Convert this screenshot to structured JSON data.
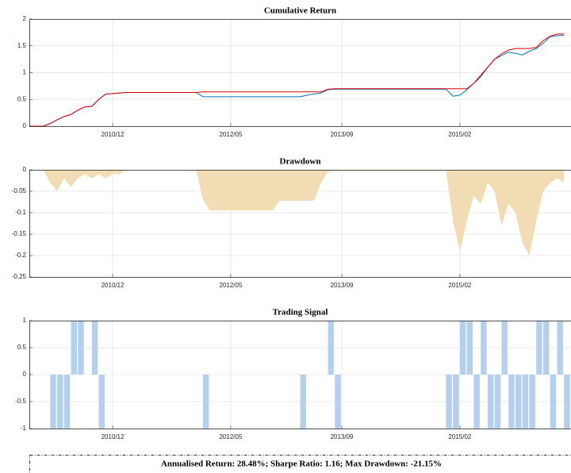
{
  "chart_data": [
    {
      "type": "line",
      "title": "Cumulative Return",
      "x": [
        "2009/12",
        "2010/01",
        "2010/02",
        "2010/03",
        "2010/04",
        "2010/05",
        "2010/06",
        "2010/07",
        "2010/08",
        "2010/09",
        "2010/10",
        "2010/11",
        "2010/12",
        "2011/01",
        "2011/02",
        "2011/03",
        "2011/04",
        "2011/05",
        "2011/06",
        "2011/07",
        "2011/08",
        "2011/09",
        "2011/10",
        "2011/11",
        "2011/12",
        "2012/01",
        "2012/02",
        "2012/03",
        "2012/04",
        "2012/05",
        "2012/06",
        "2012/07",
        "2012/08",
        "2012/09",
        "2012/10",
        "2012/11",
        "2012/12",
        "2013/01",
        "2013/02",
        "2013/03",
        "2013/04",
        "2013/05",
        "2013/06",
        "2013/07",
        "2013/08",
        "2013/09",
        "2013/10",
        "2013/11",
        "2013/12",
        "2014/01",
        "2014/02",
        "2014/03",
        "2014/04",
        "2014/05",
        "2014/06",
        "2014/07",
        "2014/08",
        "2014/09",
        "2014/10",
        "2014/11",
        "2014/12",
        "2015/01",
        "2015/02",
        "2015/03",
        "2015/04",
        "2015/05",
        "2015/06",
        "2015/07",
        "2015/08",
        "2015/09",
        "2015/10",
        "2015/11",
        "2015/12",
        "2016/01",
        "2016/02",
        "2016/03",
        "2016/04",
        "2016/05"
      ],
      "series": [
        {
          "color": "#0072bd",
          "values": [
            0,
            0,
            0,
            0.05,
            0.12,
            0.18,
            0.22,
            0.3,
            0.36,
            0.37,
            0.5,
            0.6,
            0.61,
            0.62,
            0.63,
            0.63,
            0.63,
            0.63,
            0.63,
            0.63,
            0.63,
            0.63,
            0.63,
            0.63,
            0.63,
            0.55,
            0.55,
            0.55,
            0.55,
            0.55,
            0.55,
            0.55,
            0.55,
            0.55,
            0.55,
            0.55,
            0.55,
            0.55,
            0.55,
            0.55,
            0.58,
            0.6,
            0.62,
            0.68,
            0.69,
            0.69,
            0.69,
            0.69,
            0.69,
            0.69,
            0.69,
            0.69,
            0.69,
            0.69,
            0.69,
            0.69,
            0.69,
            0.69,
            0.69,
            0.69,
            0.69,
            0.56,
            0.58,
            0.68,
            0.8,
            0.92,
            1.1,
            1.25,
            1.32,
            1.38,
            1.36,
            1.33,
            1.4,
            1.45,
            1.55,
            1.67,
            1.69,
            1.7
          ]
        },
        {
          "color": "#e00000",
          "values": [
            0,
            0,
            0,
            0.05,
            0.12,
            0.18,
            0.22,
            0.3,
            0.36,
            0.37,
            0.5,
            0.6,
            0.61,
            0.62,
            0.63,
            0.63,
            0.63,
            0.63,
            0.63,
            0.63,
            0.63,
            0.63,
            0.63,
            0.63,
            0.63,
            0.64,
            0.64,
            0.64,
            0.64,
            0.64,
            0.64,
            0.64,
            0.64,
            0.64,
            0.64,
            0.64,
            0.64,
            0.64,
            0.64,
            0.64,
            0.64,
            0.64,
            0.64,
            0.69,
            0.7,
            0.7,
            0.7,
            0.7,
            0.7,
            0.7,
            0.7,
            0.7,
            0.7,
            0.7,
            0.7,
            0.7,
            0.7,
            0.7,
            0.7,
            0.7,
            0.7,
            0.7,
            0.7,
            0.7,
            0.8,
            0.95,
            1.1,
            1.25,
            1.35,
            1.42,
            1.45,
            1.45,
            1.45,
            1.47,
            1.6,
            1.68,
            1.72,
            1.72
          ]
        }
      ],
      "xlim": [
        "2009/12",
        "2016/06"
      ],
      "xticks": [
        "2010/12",
        "2012/05",
        "2013/09",
        "2015/02"
      ],
      "ylim": [
        0,
        2
      ],
      "yticks": [
        0,
        0.5,
        1,
        1.5,
        2
      ],
      "grid": true
    },
    {
      "type": "area",
      "title": "Drawdown",
      "color": "#f2dcb4",
      "x": [
        "2009/12",
        "2010/01",
        "2010/02",
        "2010/03",
        "2010/04",
        "2010/05",
        "2010/06",
        "2010/07",
        "2010/08",
        "2010/09",
        "2010/10",
        "2010/11",
        "2010/12",
        "2011/01",
        "2011/02",
        "2011/03",
        "2011/04",
        "2011/05",
        "2011/06",
        "2011/07",
        "2011/08",
        "2011/09",
        "2011/10",
        "2011/11",
        "2011/12",
        "2012/01",
        "2012/02",
        "2012/03",
        "2012/04",
        "2012/05",
        "2012/06",
        "2012/07",
        "2012/08",
        "2012/09",
        "2012/10",
        "2012/11",
        "2012/12",
        "2013/01",
        "2013/02",
        "2013/03",
        "2013/04",
        "2013/05",
        "2013/06",
        "2013/07",
        "2013/08",
        "2013/09",
        "2013/10",
        "2013/11",
        "2013/12",
        "2014/01",
        "2014/02",
        "2014/03",
        "2014/04",
        "2014/05",
        "2014/06",
        "2014/07",
        "2014/08",
        "2014/09",
        "2014/10",
        "2014/11",
        "2014/12",
        "2015/01",
        "2015/02",
        "2015/03",
        "2015/04",
        "2015/05",
        "2015/06",
        "2015/07",
        "2015/08",
        "2015/09",
        "2015/10",
        "2015/11",
        "2015/12",
        "2016/01",
        "2016/02",
        "2016/03",
        "2016/04",
        "2016/05"
      ],
      "values": [
        0,
        0,
        0,
        -0.03,
        -0.05,
        -0.02,
        -0.04,
        -0.02,
        -0.01,
        -0.02,
        -0.01,
        -0.02,
        -0.01,
        -0.01,
        0,
        0,
        0,
        0,
        0,
        0,
        0,
        0,
        0,
        0,
        0,
        -0.07,
        -0.095,
        -0.095,
        -0.095,
        -0.095,
        -0.095,
        -0.095,
        -0.095,
        -0.095,
        -0.095,
        -0.095,
        -0.072,
        -0.072,
        -0.072,
        -0.072,
        -0.072,
        -0.072,
        -0.03,
        -0.005,
        -0.003,
        -0.003,
        -0.003,
        -0.003,
        -0.003,
        -0.003,
        -0.003,
        -0.003,
        -0.003,
        -0.003,
        -0.003,
        -0.003,
        -0.003,
        -0.003,
        -0.003,
        -0.003,
        0,
        -0.12,
        -0.19,
        -0.12,
        -0.06,
        -0.08,
        -0.03,
        -0.05,
        -0.13,
        -0.08,
        -0.1,
        -0.17,
        -0.2,
        -0.12,
        -0.05,
        -0.03,
        -0.02,
        -0.03
      ],
      "xlim": [
        "2009/12",
        "2016/06"
      ],
      "xticks": [
        "2010/12",
        "2012/05",
        "2013/09",
        "2015/02"
      ],
      "ylim": [
        -0.25,
        0
      ],
      "yticks": [
        -0.25,
        -0.2,
        -0.15,
        -0.1,
        -0.05,
        0
      ],
      "grid": true
    },
    {
      "type": "bar",
      "title": "Trading Signal",
      "color": "#b5d0ee",
      "x": [
        "2009/12",
        "2010/01",
        "2010/02",
        "2010/03",
        "2010/04",
        "2010/05",
        "2010/06",
        "2010/07",
        "2010/08",
        "2010/09",
        "2010/10",
        "2010/11",
        "2010/12",
        "2011/01",
        "2011/02",
        "2011/03",
        "2011/04",
        "2011/05",
        "2011/06",
        "2011/07",
        "2011/08",
        "2011/09",
        "2011/10",
        "2011/11",
        "2011/12",
        "2012/01",
        "2012/02",
        "2012/03",
        "2012/04",
        "2012/05",
        "2012/06",
        "2012/07",
        "2012/08",
        "2012/09",
        "2012/10",
        "2012/11",
        "2012/12",
        "2013/01",
        "2013/02",
        "2013/03",
        "2013/04",
        "2013/05",
        "2013/06",
        "2013/07",
        "2013/08",
        "2013/09",
        "2013/10",
        "2013/11",
        "2013/12",
        "2014/01",
        "2014/02",
        "2014/03",
        "2014/04",
        "2014/05",
        "2014/06",
        "2014/07",
        "2014/08",
        "2014/09",
        "2014/10",
        "2014/11",
        "2014/12",
        "2015/01",
        "2015/02",
        "2015/03",
        "2015/04",
        "2015/05",
        "2015/06",
        "2015/07",
        "2015/08",
        "2015/09",
        "2015/10",
        "2015/11",
        "2015/12",
        "2016/01",
        "2016/02",
        "2016/03",
        "2016/04",
        "2016/05"
      ],
      "values": [
        0,
        0,
        0,
        -1,
        -1,
        -1,
        1,
        1,
        0,
        1,
        -1,
        0,
        0,
        0,
        0,
        0,
        0,
        0,
        0,
        0,
        0,
        0,
        0,
        0,
        0,
        -1,
        0,
        0,
        0,
        0,
        0,
        0,
        0,
        0,
        0,
        0,
        0,
        0,
        0,
        -1,
        0,
        0,
        0,
        1,
        -1,
        0,
        0,
        0,
        0,
        0,
        0,
        0,
        0,
        0,
        0,
        0,
        0,
        0,
        0,
        0,
        -1,
        -1,
        1,
        1,
        -1,
        1,
        -1,
        -1,
        1,
        -1,
        -1,
        -1,
        -1,
        1,
        1,
        -1,
        1,
        -1
      ],
      "xlim": [
        "2009/12",
        "2016/06"
      ],
      "xticks": [
        "2010/12",
        "2012/05",
        "2013/09",
        "2015/02"
      ],
      "ylim": [
        -1,
        1
      ],
      "yticks": [
        -1,
        -0.5,
        0,
        0.5,
        1
      ],
      "grid": true
    }
  ],
  "summary": "Annualised Return: 28.48%; Sharpe Ratio: 1.16; Max Drawdown: -21.15%"
}
